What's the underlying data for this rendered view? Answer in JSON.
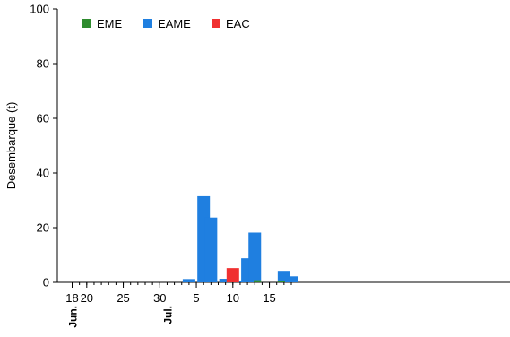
{
  "chart_data": {
    "type": "bar",
    "title": "",
    "ylabel": "Desembarque (t)",
    "xlabel": "",
    "ylim": [
      0,
      100
    ],
    "yticks": [
      0,
      20,
      40,
      60,
      80,
      100
    ],
    "x_start": "2020-06-18",
    "x_end": "2020-07-18",
    "xticks": [
      {
        "date": "2020-06-18",
        "label": "18"
      },
      {
        "date": "2020-06-20",
        "label": "20"
      },
      {
        "date": "2020-06-25",
        "label": "25"
      },
      {
        "date": "2020-06-30",
        "label": "30"
      },
      {
        "date": "2020-07-05",
        "label": "5"
      },
      {
        "date": "2020-07-10",
        "label": "10"
      },
      {
        "date": "2020-07-15",
        "label": "15"
      }
    ],
    "month_labels": [
      {
        "date": "2020-06-18",
        "label": "Jun."
      },
      {
        "date": "2020-07-01",
        "label": "Jul."
      }
    ],
    "legend_position": "top-left",
    "stacked": true,
    "grid": false,
    "series": [
      {
        "name": "EME",
        "color": "#2e8b2e",
        "points": [
          {
            "date": "2020-07-13",
            "value": 0.8
          },
          {
            "date": "2020-07-17",
            "value": 0.4
          }
        ]
      },
      {
        "name": "EAME",
        "color": "#1f7fe0",
        "points": [
          {
            "date": "2020-07-04",
            "value": 1.2
          },
          {
            "date": "2020-07-06",
            "value": 31.5
          },
          {
            "date": "2020-07-07",
            "value": 23.7
          },
          {
            "date": "2020-07-09",
            "value": 1.3
          },
          {
            "date": "2020-07-11",
            "value": 0.5
          },
          {
            "date": "2020-07-12",
            "value": 8.8
          },
          {
            "date": "2020-07-13",
            "value": 17.4
          },
          {
            "date": "2020-07-17",
            "value": 3.8
          },
          {
            "date": "2020-07-18",
            "value": 2.2
          }
        ]
      },
      {
        "name": "EAC",
        "color": "#f03030",
        "points": [
          {
            "date": "2020-07-10",
            "value": 5.2
          }
        ]
      }
    ]
  }
}
